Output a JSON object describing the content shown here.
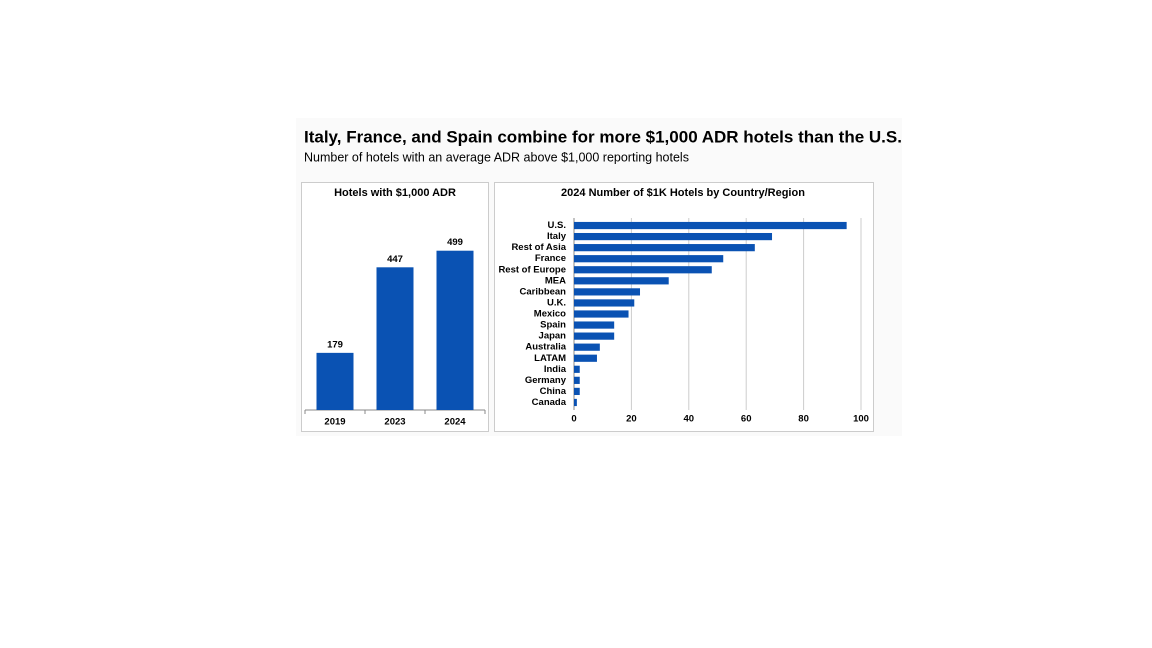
{
  "header": {
    "title": "Italy, France, and Spain combine for more $1,000 ADR hotels than the U.S.",
    "subtitle": "Number of hotels with an average ADR above $1,000 reporting hotels"
  },
  "chart_data": [
    {
      "type": "bar",
      "title": "Hotels with $1,000 ADR",
      "categories": [
        "2019",
        "2023",
        "2024"
      ],
      "values": [
        179,
        447,
        499
      ],
      "color": "#0a52b3"
    },
    {
      "type": "barh",
      "title": "2024 Number of $1K Hotels by Country/Region",
      "categories": [
        "U.S.",
        "Italy",
        "Rest of Asia",
        "France",
        "Rest of Europe",
        "MEA",
        "Caribbean",
        "U.K.",
        "Mexico",
        "Spain",
        "Japan",
        "Australia",
        "LATAM",
        "India",
        "Germany",
        "China",
        "Canada"
      ],
      "values": [
        95,
        69,
        63,
        52,
        48,
        33,
        23,
        21,
        19,
        14,
        14,
        9,
        8,
        2,
        2,
        2,
        1
      ],
      "color": "#0a52b3",
      "xlim": [
        0,
        100
      ],
      "xticks": [
        0,
        20,
        40,
        60,
        80,
        100
      ],
      "grid": true
    }
  ]
}
